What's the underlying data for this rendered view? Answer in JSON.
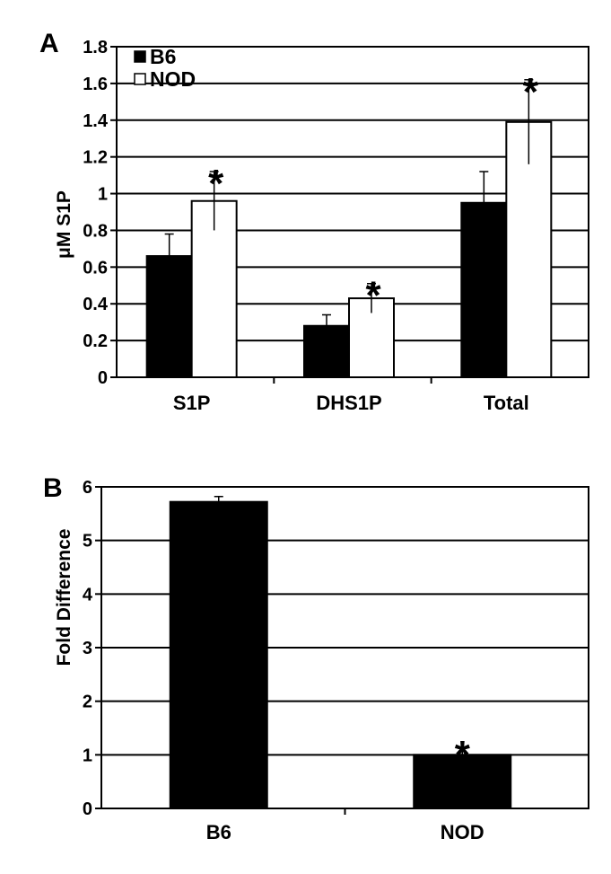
{
  "chart_data": [
    {
      "panel": "A",
      "type": "bar",
      "ylabel": "μM S1P",
      "xlabel": "",
      "ylim": [
        0,
        1.8
      ],
      "yticks": [
        "0",
        "0.2",
        "0.4",
        "0.6",
        "0.8",
        "1",
        "1.2",
        "1.4",
        "1.6",
        "1.8"
      ],
      "grid": true,
      "categories": [
        "S1P",
        "DHS1P",
        "Total"
      ],
      "legend": {
        "position": "top-left",
        "entries": [
          "B6",
          "NOD"
        ]
      },
      "series": [
        {
          "name": "B6",
          "color": "#000000",
          "values": [
            0.66,
            0.28,
            0.95
          ],
          "errors": [
            0.12,
            0.06,
            0.17
          ]
        },
        {
          "name": "NOD",
          "color": "#ffffff",
          "values": [
            0.96,
            0.43,
            1.39
          ],
          "errors": [
            0.16,
            0.08,
            0.23
          ]
        }
      ],
      "significance": [
        {
          "category": "S1P",
          "series": "NOD",
          "mark": "*"
        },
        {
          "category": "DHS1P",
          "series": "NOD",
          "mark": "*"
        },
        {
          "category": "Total",
          "series": "NOD",
          "mark": "*"
        }
      ]
    },
    {
      "panel": "B",
      "type": "bar",
      "ylabel": "Fold Difference",
      "xlabel": "",
      "ylim": [
        0,
        6
      ],
      "yticks": [
        "0",
        "1",
        "2",
        "3",
        "4",
        "5",
        "6"
      ],
      "grid": true,
      "categories": [
        "B6",
        "NOD"
      ],
      "series": [
        {
          "color": "#000000",
          "values": [
            5.72,
            1.0
          ],
          "errors": [
            0.1,
            0.12
          ]
        }
      ],
      "significance": [
        {
          "category": "NOD",
          "mark": "*"
        }
      ]
    }
  ]
}
